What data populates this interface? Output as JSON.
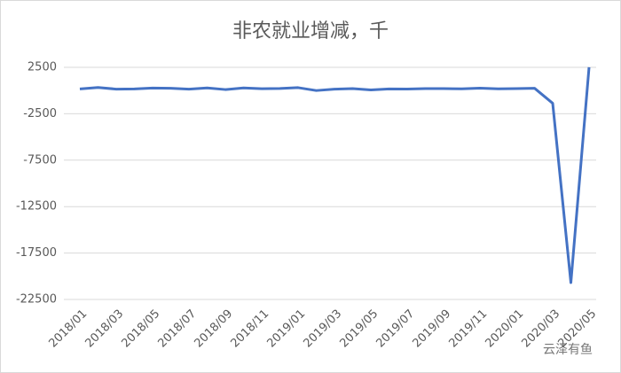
{
  "chart_data": {
    "type": "line",
    "title": "非农就业增减，千",
    "categories": [
      "2018/01",
      null,
      "2018/03",
      null,
      "2018/05",
      null,
      "2018/07",
      null,
      "2018/09",
      null,
      "2018/11",
      null,
      "2019/01",
      null,
      "2019/03",
      null,
      "2019/05",
      null,
      "2019/07",
      null,
      "2019/09",
      null,
      "2019/11",
      null,
      "2020/01",
      null,
      "2020/03",
      null,
      "2020/05"
    ],
    "series": [
      {
        "name": "非农就业增减",
        "color": "#4472c4",
        "values": [
          176,
          324,
          155,
          175,
          268,
          248,
          147,
          282,
          108,
          277,
          196,
          227,
          312,
          1,
          147,
          210,
          62,
          172,
          164,
          207,
          208,
          185,
          261,
          184,
          214,
          251,
          -1373,
          -20687,
          2509
        ]
      }
    ],
    "ylim": [
      -22500,
      2500
    ],
    "yticks": [
      2500,
      -2500,
      -7500,
      -12500,
      -17500,
      -22500
    ],
    "grid": true,
    "watermark": "云泽有鱼"
  }
}
